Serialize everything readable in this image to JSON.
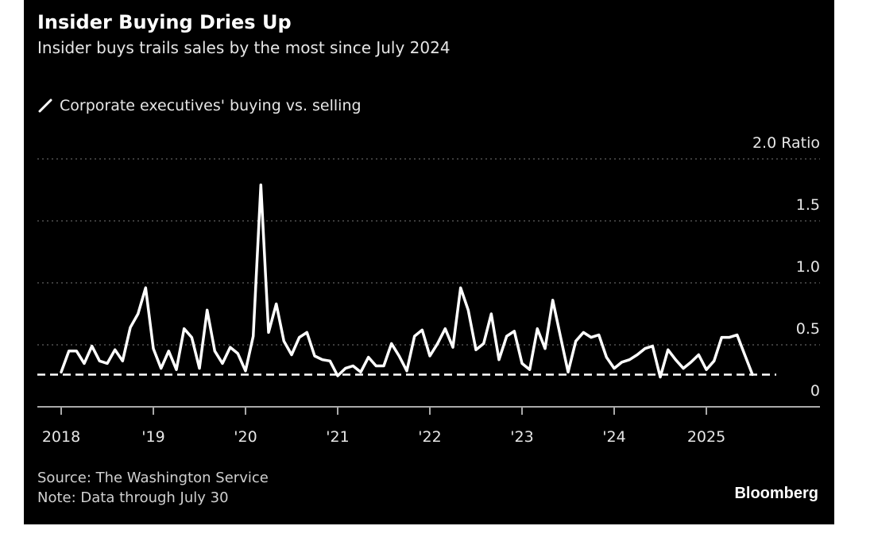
{
  "chart_data": {
    "type": "line",
    "title": "Insider Buying Dries Up",
    "subtitle": "Insider buys trails sales by the most since July 2024",
    "legend": [
      {
        "name": "Corporate executives' buying vs. selling",
        "color": "#ffffff"
      }
    ],
    "ylabel": "Ratio",
    "y_ticks": [
      {
        "value": 0,
        "label": "0"
      },
      {
        "value": 0.5,
        "label": "0.5"
      },
      {
        "value": 1.0,
        "label": "1.0"
      },
      {
        "value": 1.5,
        "label": "1.5"
      },
      {
        "value": 2.0,
        "label": "2.0 Ratio"
      }
    ],
    "ylim": [
      0,
      2.0
    ],
    "x_ticks": [
      {
        "year": 2018,
        "label": "2018"
      },
      {
        "year": 2019,
        "label": "'19"
      },
      {
        "year": 2020,
        "label": "'20"
      },
      {
        "year": 2021,
        "label": "'21"
      },
      {
        "year": 2022,
        "label": "'22"
      },
      {
        "year": 2023,
        "label": "'23"
      },
      {
        "year": 2024,
        "label": "'24"
      },
      {
        "year": 2025,
        "label": "2025"
      }
    ],
    "xlim": [
      2017.85,
      2026.3
    ],
    "x_start": "2018-01",
    "frequency": "monthly",
    "grid": true,
    "reference_line": {
      "value": 0.26,
      "style": "dashed"
    },
    "values": [
      0.28,
      0.45,
      0.45,
      0.35,
      0.49,
      0.37,
      0.35,
      0.46,
      0.37,
      0.64,
      0.75,
      0.96,
      0.47,
      0.31,
      0.45,
      0.3,
      0.63,
      0.56,
      0.31,
      0.78,
      0.45,
      0.35,
      0.48,
      0.43,
      0.29,
      0.57,
      1.79,
      0.6,
      0.83,
      0.53,
      0.42,
      0.56,
      0.6,
      0.41,
      0.38,
      0.37,
      0.25,
      0.31,
      0.33,
      0.28,
      0.4,
      0.33,
      0.33,
      0.51,
      0.41,
      0.29,
      0.57,
      0.62,
      0.41,
      0.51,
      0.63,
      0.48,
      0.96,
      0.78,
      0.46,
      0.51,
      0.75,
      0.38,
      0.57,
      0.61,
      0.35,
      0.3,
      0.63,
      0.47,
      0.86,
      0.57,
      0.28,
      0.53,
      0.6,
      0.56,
      0.58,
      0.4,
      0.31,
      0.36,
      0.38,
      0.42,
      0.47,
      0.49,
      0.24,
      0.46,
      0.38,
      0.31,
      0.36,
      0.42,
      0.3,
      0.37,
      0.56,
      0.56,
      0.58,
      0.42,
      0.26
    ]
  },
  "source": "Source: The Washington Service",
  "note": "Note: Data through July 30",
  "brand": "Bloomberg"
}
